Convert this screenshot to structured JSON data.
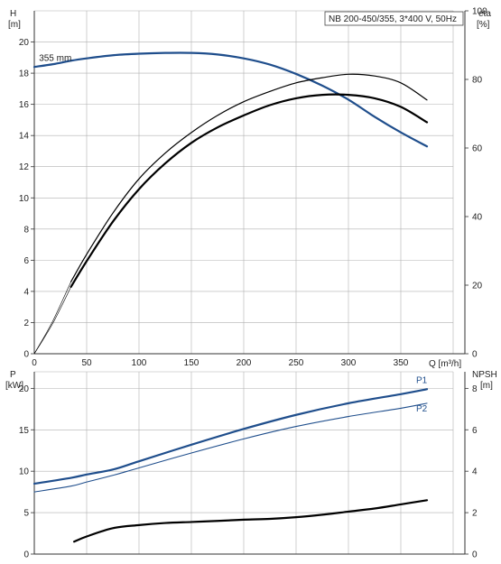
{
  "chart_data": [
    {
      "type": "line",
      "title": "NB 200-450/355, 3*400 V, 50Hz",
      "xlabel": "Q [m³/h]",
      "xlim": [
        0,
        400
      ],
      "xticks": [
        0,
        50,
        100,
        150,
        200,
        250,
        300,
        350
      ],
      "ylabel_left": "H",
      "ylabel_left_unit": "[m]",
      "ylim_left": [
        0,
        22
      ],
      "yticks_left": [
        0,
        2,
        4,
        6,
        8,
        10,
        12,
        14,
        16,
        18,
        20
      ],
      "ylabel_right": "eta",
      "ylabel_right_unit": "[%]",
      "ylim_right": [
        0,
        100
      ],
      "yticks_right": [
        0,
        20,
        40,
        60,
        80,
        100
      ],
      "grid": true,
      "colors": {
        "head": "#1f4e8c",
        "eta": "#000000",
        "grid": "#b0b0b0"
      },
      "series": [
        {
          "name": "355 mm",
          "axis": "left",
          "points": [
            [
              0,
              18.4
            ],
            [
              20,
              18.6
            ],
            [
              35,
              18.8
            ],
            [
              50,
              18.95
            ],
            [
              75,
              19.15
            ],
            [
              100,
              19.25
            ],
            [
              125,
              19.3
            ],
            [
              150,
              19.3
            ],
            [
              175,
              19.2
            ],
            [
              200,
              18.95
            ],
            [
              225,
              18.55
            ],
            [
              250,
              17.95
            ],
            [
              275,
              17.2
            ],
            [
              300,
              16.3
            ],
            [
              325,
              15.2
            ],
            [
              350,
              14.2
            ],
            [
              375,
              13.3
            ]
          ]
        },
        {
          "axis": "right",
          "points": [
            [
              35,
              21
            ],
            [
              50,
              29
            ],
            [
              75,
              41
            ],
            [
              100,
              51
            ],
            [
              125,
              58.5
            ],
            [
              150,
              64.5
            ],
            [
              175,
              69.5
            ],
            [
              200,
              73.5
            ],
            [
              225,
              76.5
            ],
            [
              250,
              79
            ],
            [
              275,
              80.5
            ],
            [
              300,
              81.5
            ],
            [
              325,
              81
            ],
            [
              350,
              79
            ],
            [
              375,
              74
            ]
          ]
        },
        {
          "axis": "right",
          "points": [
            [
              35,
              19.5
            ],
            [
              50,
              27
            ],
            [
              75,
              38.5
            ],
            [
              100,
              48
            ],
            [
              125,
              55.5
            ],
            [
              150,
              61.5
            ],
            [
              175,
              66
            ],
            [
              200,
              69.5
            ],
            [
              225,
              72.5
            ],
            [
              250,
              74.5
            ],
            [
              275,
              75.5
            ],
            [
              300,
              75.5
            ],
            [
              325,
              74.5
            ],
            [
              350,
              72
            ],
            [
              375,
              67.5
            ]
          ]
        }
      ]
    },
    {
      "type": "line",
      "xlim": [
        0,
        400
      ],
      "xticks": [
        0,
        50,
        100,
        150,
        200,
        250,
        300,
        350
      ],
      "ylabel_left": "P",
      "ylabel_left_unit": "[kW]",
      "ylim_left": [
        0,
        22
      ],
      "yticks_left": [
        0,
        5,
        10,
        15,
        20
      ],
      "ylabel_right": "NPSH",
      "ylabel_right_unit": "[m]",
      "ylim_right": [
        0,
        8.8
      ],
      "yticks_right": [
        0,
        2,
        4,
        6,
        8
      ],
      "grid": true,
      "series": [
        {
          "name": "P1",
          "axis": "left",
          "points": [
            [
              0,
              8.5
            ],
            [
              35,
              9.2
            ],
            [
              50,
              9.6
            ],
            [
              75,
              10.2
            ],
            [
              100,
              11.2
            ],
            [
              150,
              13.2
            ],
            [
              200,
              15.1
            ],
            [
              250,
              16.8
            ],
            [
              300,
              18.2
            ],
            [
              350,
              19.3
            ],
            [
              375,
              19.9
            ]
          ]
        },
        {
          "name": "P2",
          "axis": "left",
          "points": [
            [
              0,
              7.5
            ],
            [
              35,
              8.2
            ],
            [
              50,
              8.7
            ],
            [
              75,
              9.5
            ],
            [
              100,
              10.4
            ],
            [
              150,
              12.2
            ],
            [
              200,
              13.9
            ],
            [
              250,
              15.4
            ],
            [
              300,
              16.6
            ],
            [
              350,
              17.6
            ],
            [
              375,
              18.2
            ]
          ]
        },
        {
          "axis": "right",
          "points": [
            [
              38,
              0.6
            ],
            [
              50,
              0.85
            ],
            [
              75,
              1.25
            ],
            [
              100,
              1.4
            ],
            [
              125,
              1.5
            ],
            [
              150,
              1.55
            ],
            [
              175,
              1.6
            ],
            [
              200,
              1.66
            ],
            [
              225,
              1.7
            ],
            [
              250,
              1.78
            ],
            [
              275,
              1.9
            ],
            [
              300,
              2.05
            ],
            [
              325,
              2.2
            ],
            [
              350,
              2.4
            ],
            [
              375,
              2.6
            ]
          ]
        }
      ]
    }
  ]
}
